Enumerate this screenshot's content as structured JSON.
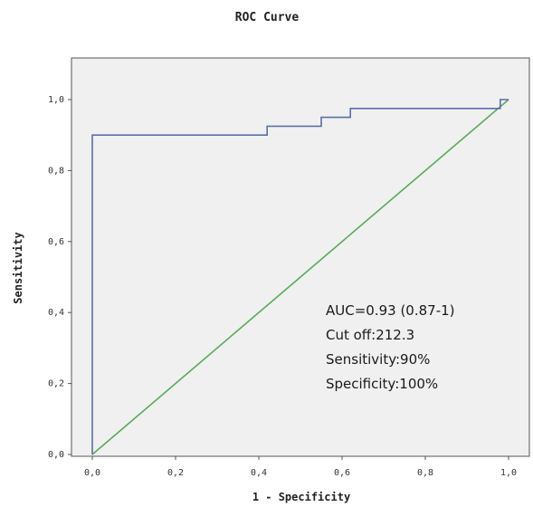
{
  "chart_data": {
    "type": "line",
    "title": "ROC Curve",
    "xlabel": "1 - Specificity",
    "ylabel": "Sensitivity",
    "xlim": [
      0,
      1
    ],
    "ylim": [
      0,
      1
    ],
    "x_ticks": [
      "0,0",
      "0,2",
      "0,4",
      "0,6",
      "0,8",
      "1,0"
    ],
    "y_ticks": [
      "0,0",
      "0,2",
      "0,4",
      "0,6",
      "0,8",
      "1,0"
    ],
    "grid": false,
    "plot_background": "#f0f0f0",
    "series": [
      {
        "color": "#5b6fa6",
        "x": [
          0.0,
          0.0,
          0.42,
          0.42,
          0.55,
          0.55,
          0.62,
          0.62,
          0.98,
          0.98,
          1.0
        ],
        "y": [
          0.0,
          0.9,
          0.9,
          0.925,
          0.925,
          0.95,
          0.95,
          0.975,
          0.975,
          1.0,
          1.0
        ]
      },
      {
        "color": "#5aaa5a",
        "x": [
          0.0,
          1.0
        ],
        "y": [
          0.0,
          1.0
        ]
      }
    ],
    "annotations": [
      "AUC=0.93 (0.87-1)",
      "Cut off:212.3",
      "Sensitivity:90%",
      "Specificity:100%"
    ]
  }
}
